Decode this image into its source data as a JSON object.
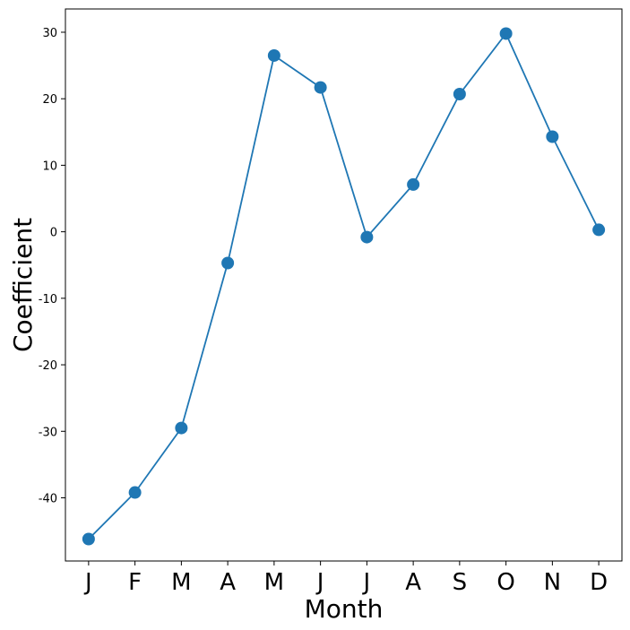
{
  "chart_data": {
    "type": "line",
    "title": "",
    "xlabel": "Month",
    "ylabel": "Coefficient",
    "categories": [
      "J",
      "F",
      "M",
      "A",
      "M",
      "J",
      "J",
      "A",
      "S",
      "O",
      "N",
      "D"
    ],
    "series": [
      {
        "values": [
          -46.2,
          -39.2,
          -29.5,
          -4.7,
          26.5,
          21.7,
          -0.8,
          7.1,
          20.7,
          29.8,
          14.3,
          0.3
        ],
        "color": "#1f77b4",
        "marker": "circle"
      }
    ],
    "yticks": [
      -40,
      -30,
      -20,
      -10,
      0,
      10,
      20,
      30
    ],
    "ylim": [
      -49.5,
      33.5
    ],
    "grid": false,
    "legend": "none"
  }
}
